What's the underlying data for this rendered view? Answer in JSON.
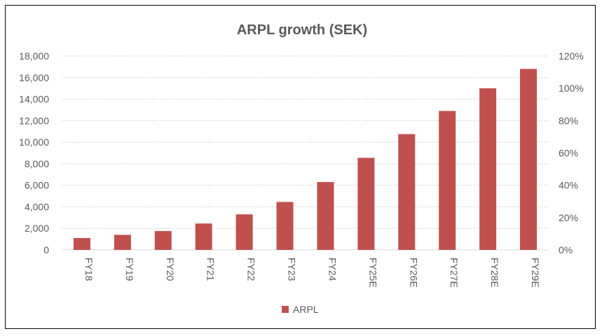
{
  "chart_data": {
    "type": "bar",
    "title": "ARPL growth (SEK)",
    "categories": [
      "FY18",
      "FY19",
      "FY20",
      "FY21",
      "FY22",
      "FY23",
      "FY24",
      "FY25E",
      "FY26E",
      "FY27E",
      "FY28E",
      "FY29E"
    ],
    "series": [
      {
        "name": "ARPL",
        "color": "#C0504D",
        "values": [
          1100,
          1400,
          1750,
          2450,
          3300,
          4450,
          6300,
          8550,
          10750,
          12900,
          15000,
          16800
        ]
      }
    ],
    "y_left": {
      "ylim": [
        0,
        18000
      ],
      "ticks": [
        "0",
        "2,000",
        "4,000",
        "6,000",
        "8,000",
        "10,000",
        "12,000",
        "14,000",
        "16,000",
        "18,000"
      ]
    },
    "y_right": {
      "ylim": [
        0,
        1.2
      ],
      "ticks": [
        "0%",
        "20%",
        "40%",
        "60%",
        "80%",
        "100%",
        "120%"
      ]
    },
    "grid": true,
    "legend": "bottom"
  }
}
